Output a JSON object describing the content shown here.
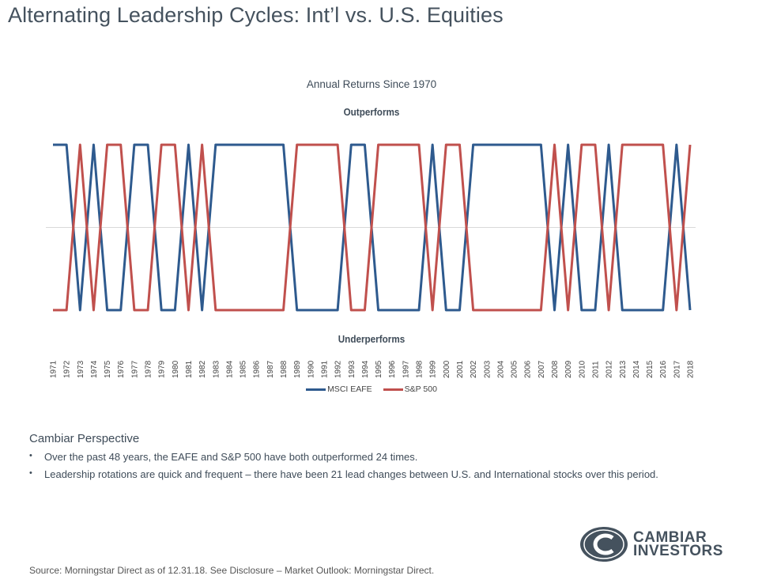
{
  "header": {
    "title": "Alternating Leadership Cycles: Int’l vs. U.S. Equities"
  },
  "chart_data": {
    "type": "line",
    "title": "Annual Returns Since 1970",
    "annotation_top": "Outperforms",
    "annotation_bottom": "Underperforms",
    "xlabel": "",
    "ylabel": "",
    "x": [
      "1971",
      "1972",
      "1973",
      "1974",
      "1975",
      "1976",
      "1977",
      "1978",
      "1979",
      "1980",
      "1981",
      "1982",
      "1983",
      "1984",
      "1985",
      "1986",
      "1987",
      "1988",
      "1989",
      "1990",
      "1991",
      "1992",
      "1993",
      "1994",
      "1995",
      "1996",
      "1997",
      "1998",
      "1999",
      "2000",
      "2001",
      "2002",
      "2003",
      "2004",
      "2005",
      "2006",
      "2007",
      "2008",
      "2009",
      "2010",
      "2011",
      "2012",
      "2013",
      "2014",
      "2015",
      "2016",
      "2017",
      "2018"
    ],
    "ylim": [
      -1,
      1
    ],
    "midline": 0,
    "series": [
      {
        "name": "MSCI EAFE",
        "color": "#2e5a8e",
        "values": [
          1,
          1,
          -1,
          1,
          -1,
          -1,
          1,
          1,
          -1,
          -1,
          1,
          -1,
          1,
          1,
          1,
          1,
          1,
          1,
          -1,
          -1,
          -1,
          -1,
          1,
          1,
          -1,
          -1,
          -1,
          -1,
          1,
          -1,
          -1,
          1,
          1,
          1,
          1,
          1,
          1,
          -1,
          1,
          -1,
          -1,
          1,
          -1,
          -1,
          -1,
          -1,
          1,
          -1
        ]
      },
      {
        "name": "S&P 500",
        "color": "#c0504d",
        "values": [
          -1,
          -1,
          1,
          -1,
          1,
          1,
          -1,
          -1,
          1,
          1,
          -1,
          1,
          -1,
          -1,
          -1,
          -1,
          -1,
          -1,
          1,
          1,
          1,
          1,
          -1,
          -1,
          1,
          1,
          1,
          1,
          -1,
          1,
          1,
          -1,
          -1,
          -1,
          -1,
          -1,
          -1,
          1,
          -1,
          1,
          1,
          -1,
          1,
          1,
          1,
          1,
          -1,
          1
        ]
      }
    ],
    "legend": "bottom"
  },
  "perspective": {
    "heading": "Cambiar Perspective",
    "bullets": [
      "Over the past 48 years, the EAFE and S&P 500 have both outperformed 24 times.",
      "Leadership rotations are quick and frequent – there have been 21 lead changes between U.S. and International stocks over this period."
    ],
    "bullet_glyph": "•"
  },
  "logo": {
    "line1": "CAMBIAR",
    "line2": "INVESTORS",
    "mark": "C"
  },
  "footer": {
    "source": "Source: Morningstar Direct as of 12.31.18.  See Disclosure – Market Outlook: Morningstar Direct."
  }
}
